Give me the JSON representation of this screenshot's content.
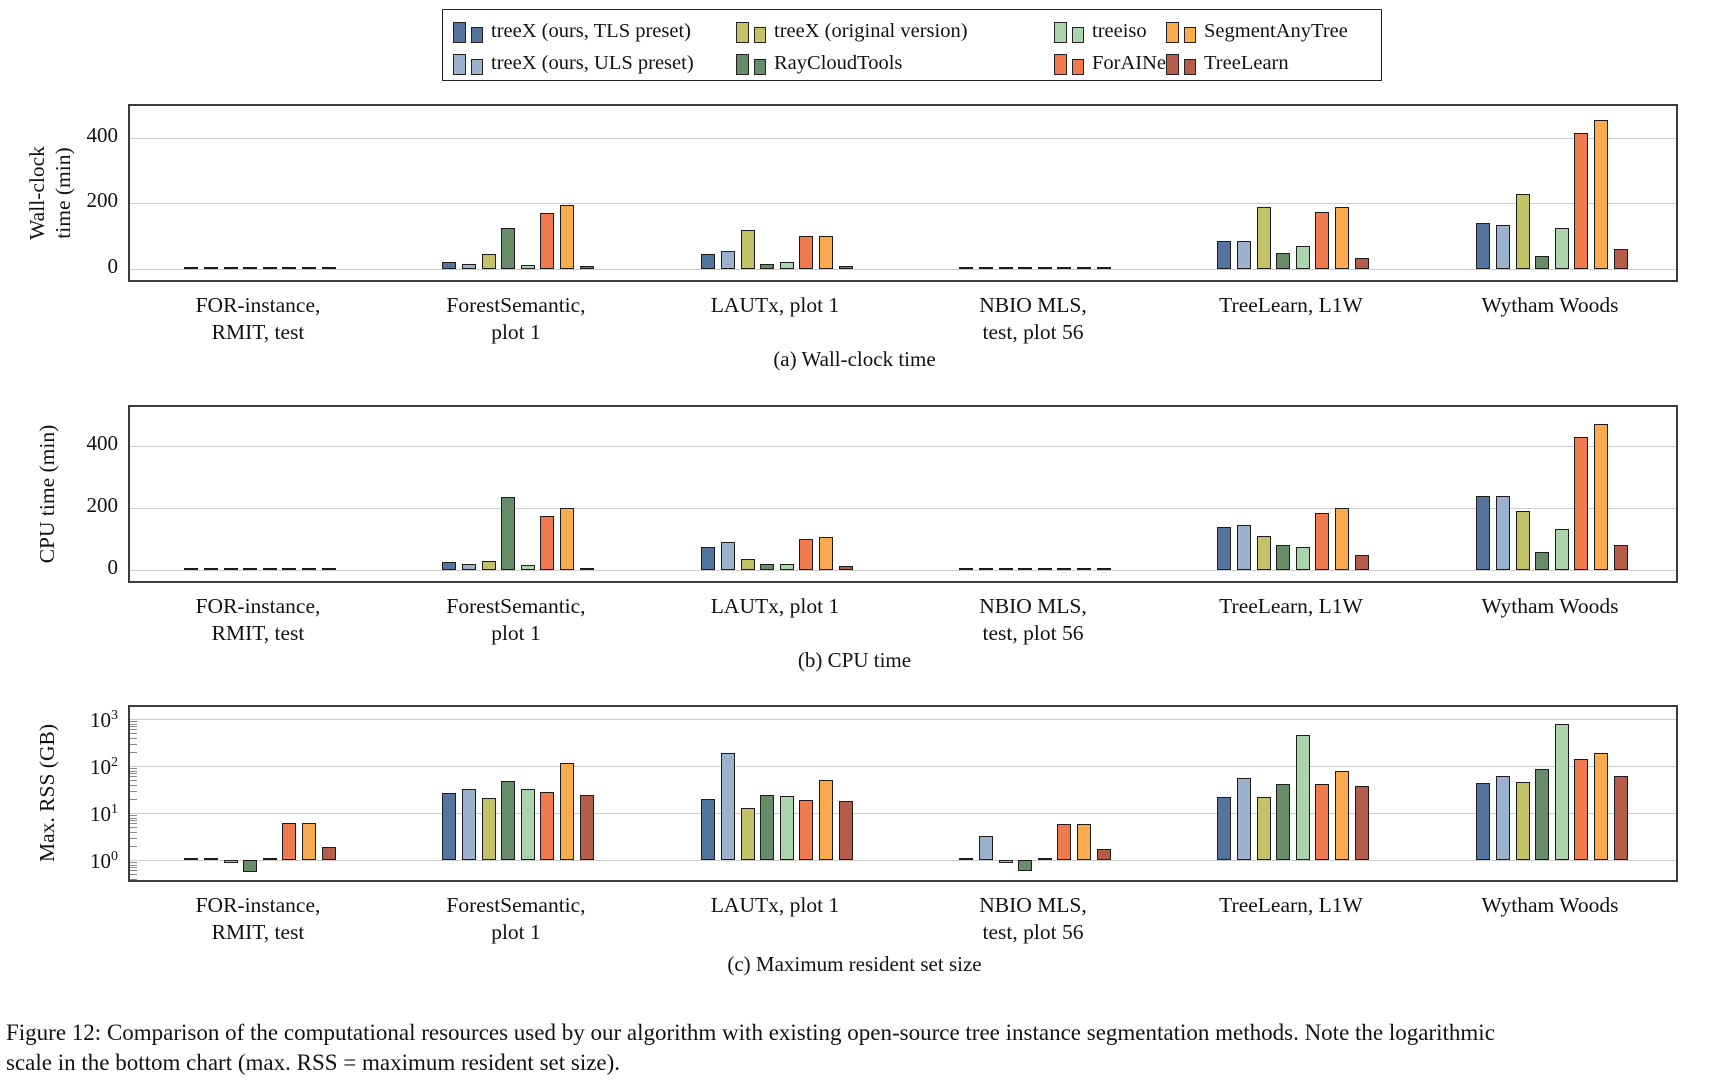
{
  "legend": {
    "columns": [
      [
        {
          "label": "treeX (ours, TLS preset)",
          "color": "#54749e"
        },
        {
          "label": "treeX (ours, ULS preset)",
          "color": "#9cb2cc"
        }
      ],
      [
        {
          "label": "treeX (original version)",
          "color": "#c4c167"
        },
        {
          "label": "RayCloudTools",
          "color": "#668c69"
        }
      ],
      [
        {
          "label": "treeiso",
          "color": "#abd3ac"
        },
        {
          "label": "ForAINet",
          "color": "#f07a4d"
        }
      ],
      [
        {
          "label": "SegmentAnyTree",
          "color": "#f9ab4d"
        },
        {
          "label": "TreeLearn",
          "color": "#b65c4b"
        }
      ]
    ]
  },
  "chart_data": [
    {
      "type": "bar",
      "scale": "linear",
      "subcaption": "(a) Wall-clock time",
      "ylabel": [
        "Wall-clock",
        "time (min)"
      ],
      "yticks": [
        0,
        200,
        400
      ],
      "ylim": [
        0,
        495
      ],
      "grid": true,
      "legend_position": "top-outside",
      "categories": [
        [
          "FOR-instance,",
          "RMIT, test"
        ],
        [
          "ForestSemantic,",
          "plot 1"
        ],
        [
          "LAUTx, plot 1"
        ],
        [
          "NBIO MLS,",
          "test, plot 56"
        ],
        [
          "TreeLearn, L1W"
        ],
        [
          "Wytham Woods"
        ]
      ],
      "series": [
        {
          "name": "treeX (ours, TLS preset)",
          "color": "#54749e",
          "values": [
            2,
            20,
            45,
            2,
            85,
            140
          ]
        },
        {
          "name": "treeX (ours, ULS preset)",
          "color": "#9cb2cc",
          "values": [
            2,
            14,
            55,
            2,
            85,
            135
          ]
        },
        {
          "name": "treeX (original version)",
          "color": "#c4c167",
          "values": [
            2,
            45,
            120,
            4,
            190,
            230
          ]
        },
        {
          "name": "RayCloudTools",
          "color": "#668c69",
          "values": [
            2,
            125,
            14,
            2,
            50,
            40
          ]
        },
        {
          "name": "treeiso",
          "color": "#abd3ac",
          "values": [
            1,
            13,
            20,
            2,
            70,
            125
          ]
        },
        {
          "name": "ForAINet",
          "color": "#f07a4d",
          "values": [
            2,
            170,
            100,
            2,
            175,
            415
          ]
        },
        {
          "name": "SegmentAnyTree",
          "color": "#f9ab4d",
          "values": [
            2,
            195,
            100,
            2,
            190,
            455
          ]
        },
        {
          "name": "TreeLearn",
          "color": "#b65c4b",
          "values": [
            1,
            8,
            10,
            1,
            35,
            62
          ]
        }
      ]
    },
    {
      "type": "bar",
      "scale": "linear",
      "subcaption": "(b) CPU time",
      "ylabel": [
        "CPU time (min)"
      ],
      "yticks": [
        0,
        200,
        400
      ],
      "ylim": [
        0,
        520
      ],
      "grid": true,
      "categories": [
        [
          "FOR-instance,",
          "RMIT, test"
        ],
        [
          "ForestSemantic,",
          "plot 1"
        ],
        [
          "LAUTx, plot 1"
        ],
        [
          "NBIO MLS,",
          "test, plot 56"
        ],
        [
          "TreeLearn, L1W"
        ],
        [
          "Wytham Woods"
        ]
      ],
      "series": [
        {
          "name": "treeX (ours, TLS preset)",
          "color": "#54749e",
          "values": [
            1,
            25,
            75,
            1,
            140,
            240
          ]
        },
        {
          "name": "treeX (ours, ULS preset)",
          "color": "#9cb2cc",
          "values": [
            1,
            20,
            90,
            1,
            145,
            240
          ]
        },
        {
          "name": "treeX (original version)",
          "color": "#c4c167",
          "values": [
            1,
            30,
            35,
            1,
            110,
            190
          ]
        },
        {
          "name": "RayCloudTools",
          "color": "#668c69",
          "values": [
            1,
            235,
            20,
            1,
            80,
            58
          ]
        },
        {
          "name": "treeiso",
          "color": "#abd3ac",
          "values": [
            1,
            15,
            20,
            1,
            75,
            133
          ]
        },
        {
          "name": "ForAINet",
          "color": "#f07a4d",
          "values": [
            1,
            175,
            100,
            1,
            185,
            430
          ]
        },
        {
          "name": "SegmentAnyTree",
          "color": "#f9ab4d",
          "values": [
            1,
            200,
            105,
            1,
            200,
            470
          ]
        },
        {
          "name": "TreeLearn",
          "color": "#b65c4b",
          "values": [
            1,
            8,
            12,
            1,
            48,
            80
          ]
        }
      ]
    },
    {
      "type": "bar",
      "scale": "log",
      "subcaption": "(c) Maximum resident set size",
      "ylabel": [
        "Max.  RSS (GB)"
      ],
      "ytick_exponents": [
        0,
        1,
        2,
        3
      ],
      "ylim": [
        0.3,
        1300
      ],
      "log_baseline": 1,
      "grid": true,
      "categories": [
        [
          "FOR-instance,",
          "RMIT, test"
        ],
        [
          "ForestSemantic,",
          "plot 1"
        ],
        [
          "LAUTx, plot 1"
        ],
        [
          "NBIO MLS,",
          "test, plot 56"
        ],
        [
          "TreeLearn, L1W"
        ],
        [
          "Wytham Woods"
        ]
      ],
      "series": [
        {
          "name": "treeX (ours, TLS preset)",
          "color": "#54749e",
          "values": [
            0.93,
            26,
            20,
            1.0,
            22,
            44
          ]
        },
        {
          "name": "treeX (ours, ULS preset)",
          "color": "#9cb2cc",
          "values": [
            0.93,
            33,
            190,
            3.3,
            55,
            60
          ]
        },
        {
          "name": "treeX (original version)",
          "color": "#c4c167",
          "values": [
            0.85,
            21,
            13,
            0.85,
            22,
            46
          ]
        },
        {
          "name": "RayCloudTools",
          "color": "#668c69",
          "values": [
            0.55,
            48,
            24,
            0.57,
            42,
            85
          ]
        },
        {
          "name": "treeiso",
          "color": "#abd3ac",
          "values": [
            1.0,
            32,
            23,
            0.95,
            460,
            780
          ]
        },
        {
          "name": "ForAINet",
          "color": "#f07a4d",
          "values": [
            6.2,
            28,
            19,
            5.9,
            42,
            140
          ]
        },
        {
          "name": "SegmentAnyTree",
          "color": "#f9ab4d",
          "values": [
            6.2,
            115,
            50,
            5.75,
            78,
            185
          ]
        },
        {
          "name": "TreeLearn",
          "color": "#b65c4b",
          "values": [
            1.85,
            24,
            18,
            1.75,
            37,
            60
          ]
        }
      ]
    }
  ],
  "caption": {
    "lines": [
      "Figure 12: Comparison of the computational resources used by our algorithm with existing open-source tree instance segmentation methods. Note the logarithmic",
      "scale in the bottom chart (max. RSS = maximum resident set size)."
    ]
  }
}
